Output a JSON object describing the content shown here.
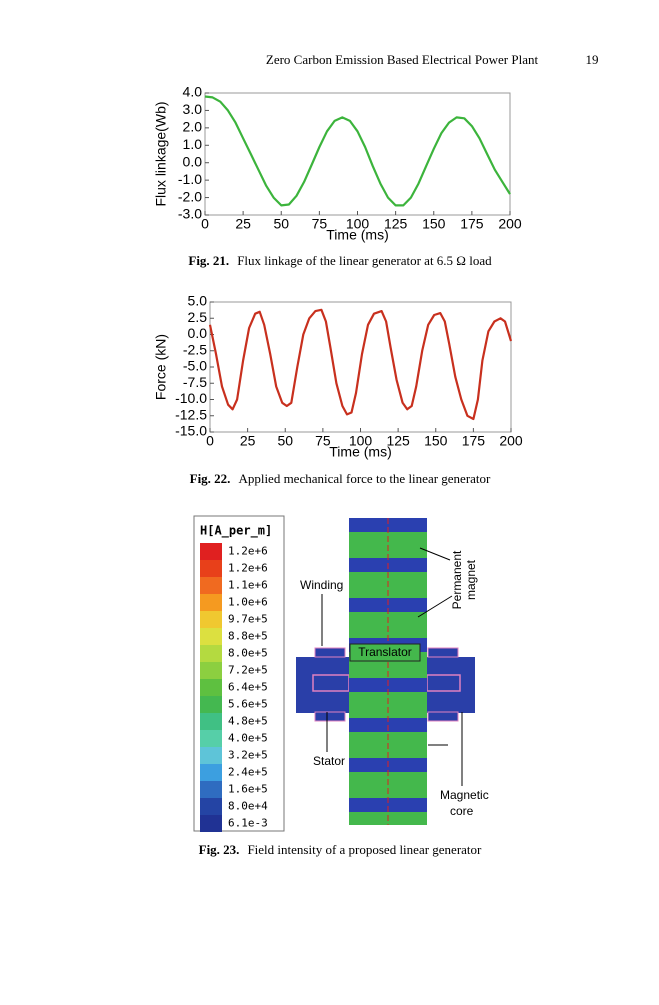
{
  "header": {
    "title": "Zero Carbon Emission Based Electrical Power Plant",
    "page": "19"
  },
  "chart_data": [
    {
      "type": "line",
      "xlabel": "Time (ms)",
      "ylabel": "Flux linkage(Wb)",
      "color": "#3cb43c",
      "x": [
        0,
        5,
        10,
        15,
        20,
        25,
        30,
        35,
        40,
        45,
        50,
        55,
        60,
        65,
        70,
        75,
        80,
        85,
        90,
        95,
        100,
        105,
        110,
        115,
        120,
        125,
        130,
        135,
        140,
        145,
        150,
        155,
        160,
        165,
        170,
        175,
        180,
        185,
        190,
        195,
        200
      ],
      "values": [
        3.8,
        3.75,
        3.5,
        3.0,
        2.3,
        1.4,
        0.5,
        -0.4,
        -1.3,
        -2.0,
        -2.45,
        -2.4,
        -1.9,
        -1.1,
        -0.1,
        0.9,
        1.8,
        2.4,
        2.6,
        2.4,
        1.8,
        0.9,
        -0.2,
        -1.2,
        -2.0,
        -2.45,
        -2.45,
        -2.0,
        -1.2,
        -0.2,
        0.8,
        1.7,
        2.3,
        2.6,
        2.55,
        2.1,
        1.4,
        0.5,
        -0.4,
        -1.1,
        -1.8
      ],
      "xlim": [
        0,
        200
      ],
      "xticks": [
        0,
        25,
        50,
        75,
        100,
        125,
        150,
        175,
        200
      ],
      "ylim": [
        -3,
        4
      ],
      "yticks": [
        {
          "value": -3,
          "label": "-3.0"
        },
        {
          "value": -2,
          "label": "-2.0"
        },
        {
          "value": -1,
          "label": "-1.0"
        },
        {
          "value": 0,
          "label": "0.0"
        },
        {
          "value": 1,
          "label": "1.0"
        },
        {
          "value": 2,
          "label": "2.0"
        },
        {
          "value": 3,
          "label": "3.0"
        },
        {
          "value": 4,
          "label": "4.0"
        }
      ]
    },
    {
      "type": "line",
      "xlabel": "Time (ms)",
      "ylabel": "Force (kN)",
      "color": "#c8301e",
      "x": [
        0,
        4,
        8,
        12,
        15,
        18,
        22,
        26,
        30,
        33,
        36,
        40,
        44,
        48,
        51,
        54,
        58,
        62,
        66,
        70,
        74,
        77,
        80,
        84,
        88,
        91,
        94,
        97,
        101,
        105,
        109,
        114,
        117,
        120,
        124,
        128,
        131,
        134,
        137,
        141,
        145,
        149,
        153,
        156,
        159,
        163,
        167,
        171,
        175,
        178,
        181,
        185,
        189,
        193,
        196,
        200
      ],
      "values": [
        1.5,
        -3,
        -8,
        -10.8,
        -11.5,
        -10,
        -4,
        1,
        3.2,
        3.5,
        1.5,
        -3,
        -8,
        -10.5,
        -11,
        -10.5,
        -5,
        0,
        2.5,
        3.6,
        3.8,
        2,
        -2,
        -7.5,
        -11,
        -12.3,
        -12,
        -9,
        -3,
        1.5,
        3.2,
        3.6,
        2,
        -2,
        -7,
        -10.5,
        -11.5,
        -11,
        -8,
        -2.5,
        1.5,
        3,
        3.3,
        2,
        -1.5,
        -6.5,
        -10,
        -12.5,
        -13,
        -10,
        -4,
        0.5,
        2,
        2.5,
        2,
        -1
      ],
      "xlim": [
        0,
        200
      ],
      "xticks": [
        0,
        25,
        50,
        75,
        100,
        125,
        150,
        175,
        200
      ],
      "ylim": [
        -15,
        5
      ],
      "yticks": [
        {
          "value": -15,
          "label": "-15.0"
        },
        {
          "value": -12.5,
          "label": "-12.5"
        },
        {
          "value": -10,
          "label": "-10.0"
        },
        {
          "value": -7.5,
          "label": "-7.5"
        },
        {
          "value": -5,
          "label": "-5.0"
        },
        {
          "value": -2.5,
          "label": "-2.5"
        },
        {
          "value": 0,
          "label": "0.0"
        },
        {
          "value": 2.5,
          "label": "2.5"
        },
        {
          "value": 5,
          "label": "5.0"
        }
      ]
    }
  ],
  "captions": [
    {
      "label": "Fig. 21.",
      "text": "Flux linkage of the linear generator at 6.5 Ω load"
    },
    {
      "label": "Fig. 22.",
      "text": "Applied mechanical force to the linear generator"
    },
    {
      "label": "Fig. 23.",
      "text": "Field intensity of a proposed linear generator"
    }
  ],
  "colorbar": {
    "title": "H[A_per_m]",
    "labels": [
      "1.2e+6",
      "1.2e+6",
      "1.1e+6",
      "1.0e+6",
      "9.7e+5",
      "8.8e+5",
      "8.0e+5",
      "7.2e+5",
      "6.4e+5",
      "5.6e+5",
      "4.8e+5",
      "4.0e+5",
      "3.2e+5",
      "2.4e+5",
      "1.6e+5",
      "8.0e+4",
      "6.1e-3"
    ],
    "colors": [
      "#e02020",
      "#e8401a",
      "#f06a20",
      "#f59a20",
      "#f0c830",
      "#dce040",
      "#b4da40",
      "#8ccf40",
      "#5ec040",
      "#44b850",
      "#40c084",
      "#56cfa8",
      "#5ec4d8",
      "#3c9fe0",
      "#2f6cc0",
      "#2444a4",
      "#203294"
    ]
  },
  "diagram": {
    "winding": "Winding",
    "permanent": "Permanent",
    "magnet": "magnet",
    "translator": "Translator",
    "stator": "Stator",
    "magnetic": "Magnetic",
    "core": "core"
  }
}
